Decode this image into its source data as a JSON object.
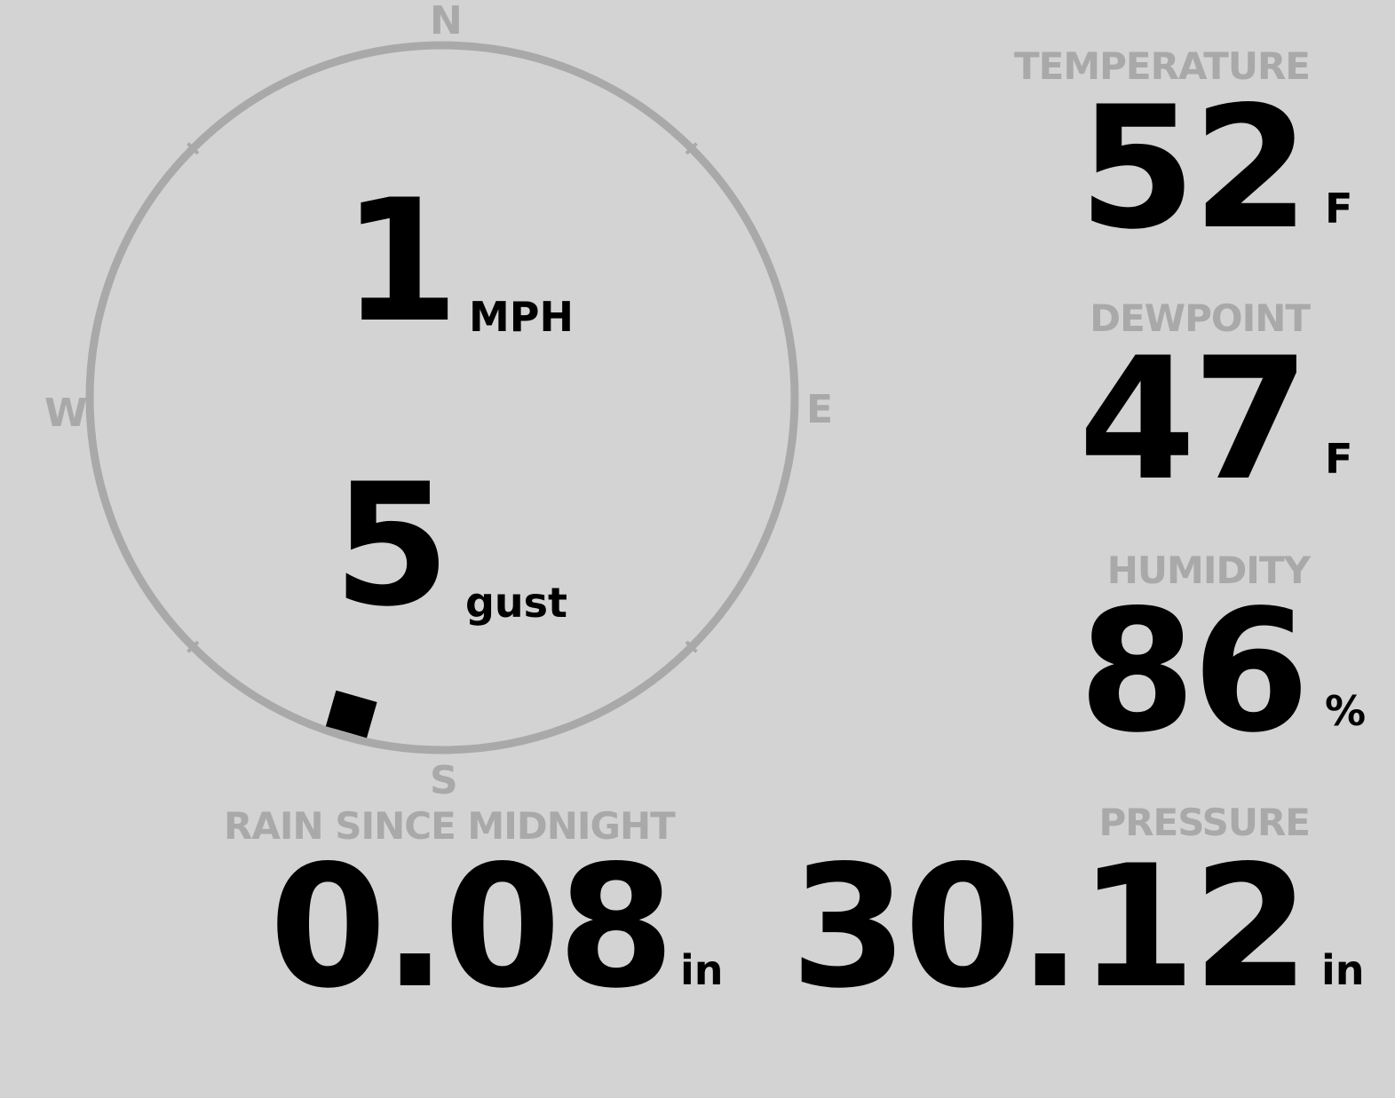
{
  "wind": {
    "speed": "1",
    "speed_unit": "MPH",
    "gust": "5",
    "gust_unit": "gust",
    "direction_degrees": 196,
    "cardinals": {
      "n": "N",
      "e": "E",
      "s": "S",
      "w": "W"
    }
  },
  "temperature": {
    "label": "TEMPERATURE",
    "value": "52",
    "unit": "F"
  },
  "dewpoint": {
    "label": "DEWPOINT",
    "value": "47",
    "unit": "F"
  },
  "humidity": {
    "label": "HUMIDITY",
    "value": "86",
    "unit": "%"
  },
  "rain": {
    "label": "RAIN SINCE MIDNIGHT",
    "value": "0.08",
    "unit": "in"
  },
  "pressure": {
    "label": "PRESSURE",
    "value": "30.12",
    "unit": "in"
  },
  "colors": {
    "background": "#d3d3d3",
    "label": "#a9a9a9",
    "value": "#000000"
  }
}
